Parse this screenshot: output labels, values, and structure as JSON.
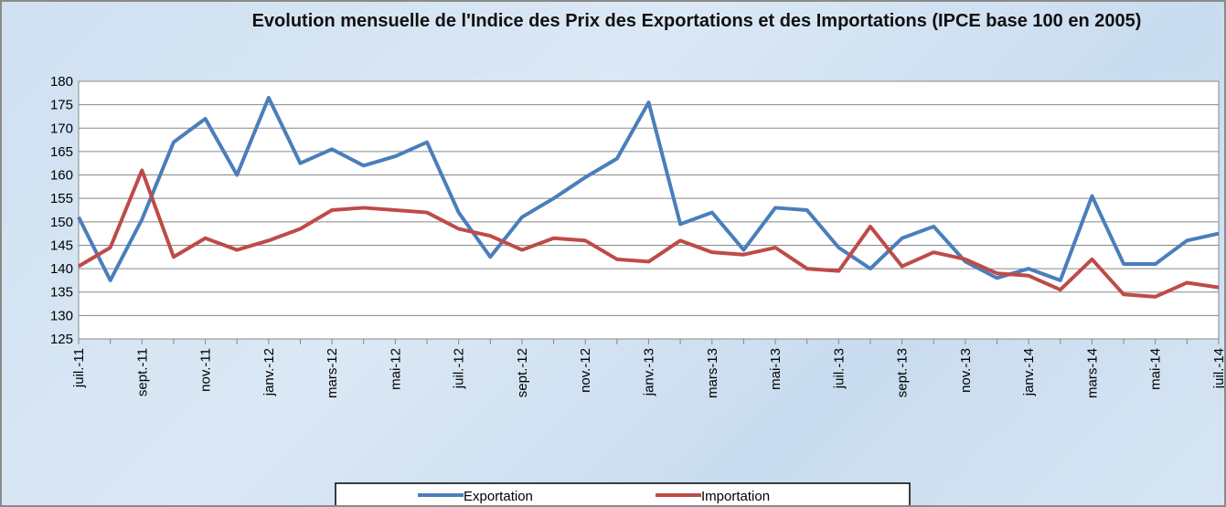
{
  "chart_data": {
    "type": "line",
    "title": "Evolution mensuelle de l'Indice des Prix des Exportations et des Importations (IPCE base 100 en 2005)",
    "categories": [
      "juil.-11",
      null,
      "sept.-11",
      null,
      "nov.-11",
      null,
      "janv.-12",
      null,
      "mars-12",
      null,
      "mai-12",
      null,
      "juil.-12",
      null,
      "sept.-12",
      null,
      "nov.-12",
      null,
      "janv.-13",
      null,
      "mars-13",
      null,
      "mai-13",
      null,
      "juil.-13",
      null,
      "sept.-13",
      null,
      "nov.-13",
      null,
      "janv.-14",
      null,
      "mars-14",
      null,
      "mai-14",
      null,
      "juil.-14"
    ],
    "series": [
      {
        "name": "Exportation",
        "color": "#4a7ebb",
        "values": [
          151,
          137.5,
          150.5,
          167,
          172,
          160,
          176.5,
          162.5,
          165.5,
          162,
          164,
          167,
          152,
          142.5,
          151,
          155,
          159.5,
          163.5,
          175.5,
          149.5,
          152,
          144,
          153,
          152.5,
          144.5,
          140,
          146.5,
          149,
          141.5,
          138,
          140,
          137.5,
          155.5,
          141,
          141,
          146,
          147.5
        ]
      },
      {
        "name": "Importation",
        "color": "#be4b48",
        "values": [
          140.5,
          144.5,
          161,
          142.5,
          146.5,
          144,
          146,
          148.5,
          152.5,
          153,
          152.5,
          152,
          148.5,
          147,
          144,
          146.5,
          146,
          142,
          141.5,
          146,
          143.5,
          143,
          144.5,
          140,
          139.5,
          149,
          140.5,
          143.5,
          142,
          139,
          138.5,
          135.5,
          142,
          134.5,
          134,
          137,
          136
        ]
      }
    ],
    "ylim": [
      125,
      180
    ],
    "yticks": [
      125,
      130,
      135,
      140,
      145,
      150,
      155,
      160,
      165,
      170,
      175,
      180
    ],
    "grid": true,
    "legend": "bottom"
  }
}
